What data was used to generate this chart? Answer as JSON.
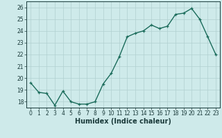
{
  "x": [
    0,
    1,
    2,
    3,
    4,
    5,
    6,
    7,
    8,
    9,
    10,
    11,
    12,
    13,
    14,
    15,
    16,
    17,
    18,
    19,
    20,
    21,
    22,
    23
  ],
  "y": [
    19.6,
    18.8,
    18.7,
    17.7,
    18.9,
    18.0,
    17.8,
    17.8,
    18.0,
    19.5,
    20.4,
    21.8,
    23.5,
    23.8,
    24.0,
    24.5,
    24.2,
    24.4,
    25.4,
    25.5,
    25.9,
    25.0,
    23.5,
    22.0
  ],
  "line_color": "#1a6b5a",
  "marker": "+",
  "markersize": 3.5,
  "linewidth": 1.0,
  "xlabel": "Humidex (Indice chaleur)",
  "xlim": [
    -0.5,
    23.5
  ],
  "ylim": [
    17.5,
    26.5
  ],
  "yticks": [
    18,
    19,
    20,
    21,
    22,
    23,
    24,
    25,
    26
  ],
  "xticks": [
    0,
    1,
    2,
    3,
    4,
    5,
    6,
    7,
    8,
    9,
    10,
    11,
    12,
    13,
    14,
    15,
    16,
    17,
    18,
    19,
    20,
    21,
    22,
    23
  ],
  "bg_color": "#ceeaea",
  "grid_color": "#b0d0d0",
  "tick_fontsize": 5.5,
  "xlabel_fontsize": 7,
  "label_color": "#1a3a3a"
}
